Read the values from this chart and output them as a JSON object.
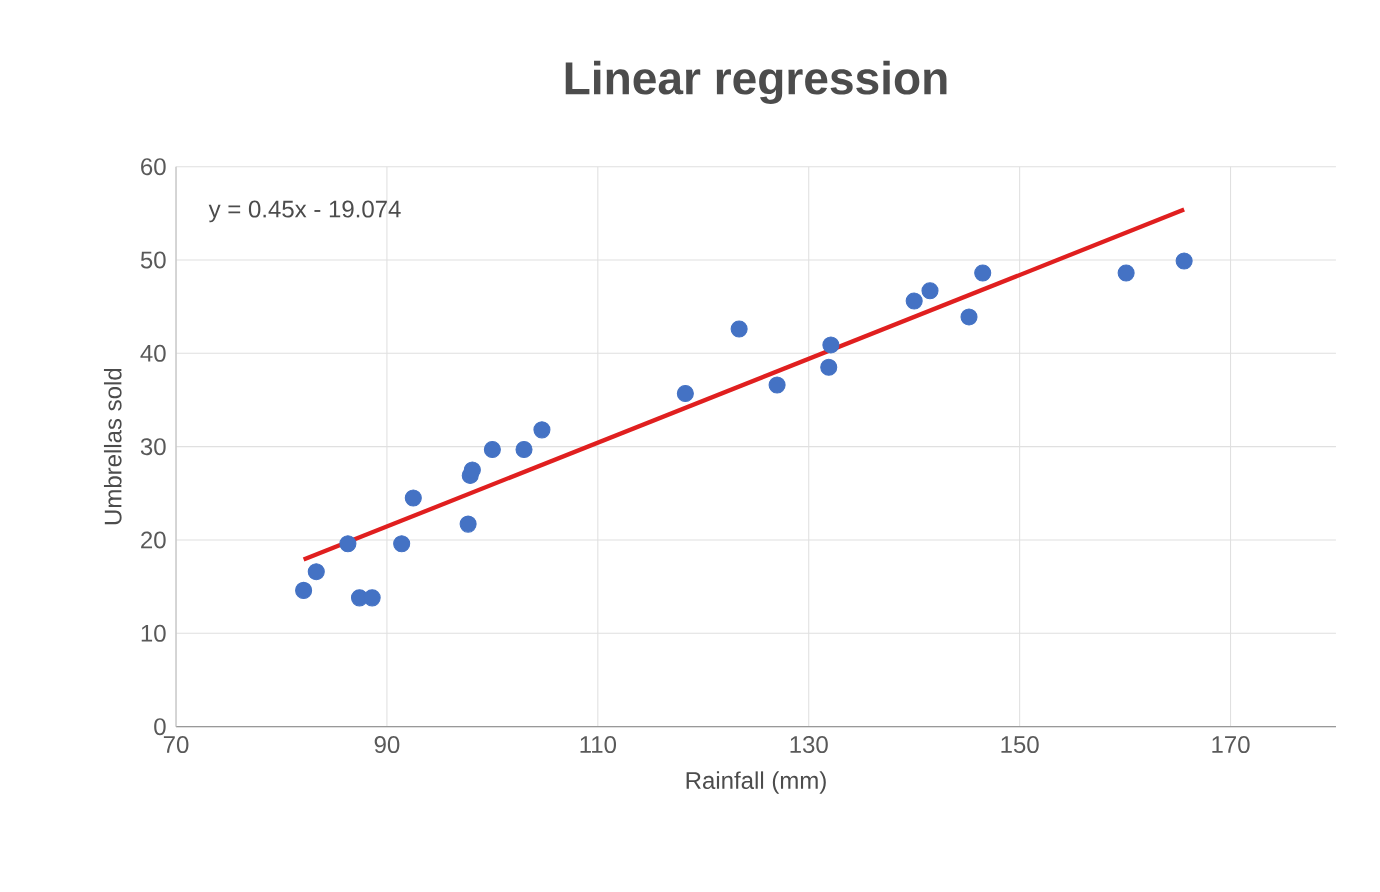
{
  "chart_data": {
    "type": "scatter",
    "title": "Linear regression",
    "xlabel": "Rainfall (mm)",
    "ylabel": "Umbrellas sold",
    "annotations": [
      "y = 0.45x - 19.074"
    ],
    "xlim": [
      70,
      180
    ],
    "xticks": [
      70,
      90,
      110,
      130,
      150,
      170
    ],
    "ylim": [
      0,
      60
    ],
    "yticks": [
      0,
      10,
      20,
      30,
      40,
      50,
      60
    ],
    "grid": true,
    "series": [
      {
        "color": "#4472c4",
        "marker": "circle",
        "x": [
          82.1,
          83.3,
          86.3,
          87.4,
          88.6,
          91.4,
          92.5,
          97.7,
          97.9,
          98.1,
          100.0,
          103.0,
          104.7,
          118.3,
          123.4,
          127.0,
          131.9,
          132.1,
          140.0,
          141.5,
          145.2,
          146.5,
          160.1,
          165.6
        ],
        "values": [
          14.6,
          16.6,
          19.6,
          13.8,
          13.8,
          19.6,
          24.5,
          21.7,
          26.9,
          27.5,
          29.7,
          29.7,
          31.8,
          35.7,
          42.6,
          36.6,
          38.5,
          40.9,
          45.6,
          46.7,
          43.9,
          48.6,
          48.6,
          49.9
        ]
      },
      {
        "type": "line",
        "marker": "none",
        "color": "#e01f1f",
        "x": [
          82.1,
          165.6
        ],
        "values": [
          17.9,
          55.4
        ]
      }
    ]
  }
}
